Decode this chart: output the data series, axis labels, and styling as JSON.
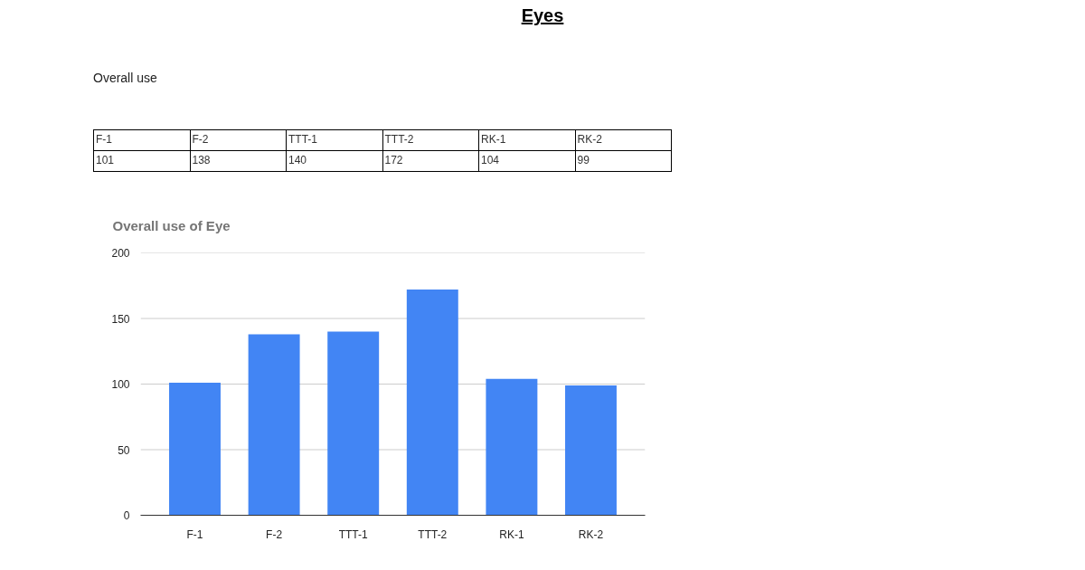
{
  "chart_data": [
    {
      "type": "other",
      "title": "Overall use",
      "annotations": [
        "Eyes"
      ],
      "categories": [
        "F-1",
        "F-2",
        "TTT-1",
        "TTT-2",
        "RK-1",
        "RK-2"
      ],
      "values": [
        101,
        138,
        140,
        172,
        104,
        99
      ],
      "data_labels": true
    },
    {
      "type": "bar",
      "title": "Overall use of Eye",
      "categories": [
        "F-1",
        "F-2",
        "TTT-1",
        "TTT-2",
        "RK-1",
        "RK-2"
      ],
      "values": [
        101,
        138,
        140,
        172,
        104,
        99
      ],
      "color": "#4285f4",
      "ylim": [
        0,
        200
      ],
      "yticks": [
        0,
        50,
        100,
        150,
        200
      ],
      "grid": "y"
    }
  ]
}
